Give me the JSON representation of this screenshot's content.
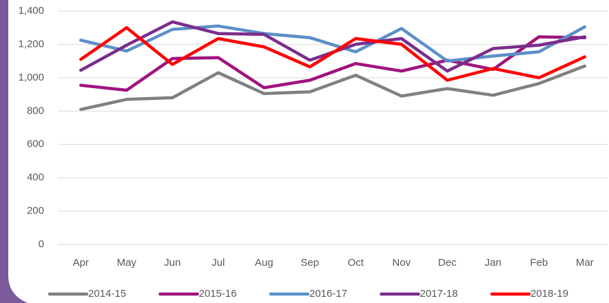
{
  "chart_data": {
    "type": "line",
    "categories": [
      "Apr",
      "May",
      "Jun",
      "Jul",
      "Aug",
      "Sep",
      "Oct",
      "Nov",
      "Dec",
      "Jan",
      "Feb",
      "Mar"
    ],
    "series": [
      {
        "name": "2014-15",
        "color": "#808080",
        "values": [
          810,
          870,
          880,
          1030,
          905,
          915,
          1015,
          890,
          935,
          895,
          965,
          1070
        ]
      },
      {
        "name": "2015-16",
        "color": "#a0137e",
        "values": [
          955,
          925,
          1115,
          1120,
          940,
          985,
          1085,
          1040,
          1105,
          1050,
          1245,
          1240
        ]
      },
      {
        "name": "2016-17",
        "color": "#5b8fc9",
        "values": [
          1225,
          1160,
          1290,
          1310,
          1265,
          1240,
          1155,
          1295,
          1100,
          1130,
          1155,
          1305
        ]
      },
      {
        "name": "2017-18",
        "color": "#7b2d8b",
        "values": [
          1045,
          1195,
          1335,
          1265,
          1260,
          1105,
          1200,
          1235,
          1040,
          1175,
          1195,
          1245
        ]
      },
      {
        "name": "2018-19",
        "color": "#ff0000",
        "values": [
          1110,
          1300,
          1080,
          1235,
          1185,
          1065,
          1235,
          1200,
          985,
          1055,
          1000,
          1125
        ]
      }
    ],
    "ylim": [
      0,
      1400
    ],
    "yticks": [
      0,
      200,
      400,
      600,
      800,
      {
        "value": 1000,
        "label": "1,000"
      },
      {
        "value": 1200,
        "label": "1,200"
      },
      {
        "value": 1400,
        "label": "1,400"
      }
    ],
    "grid": true,
    "legend": "bottom"
  }
}
